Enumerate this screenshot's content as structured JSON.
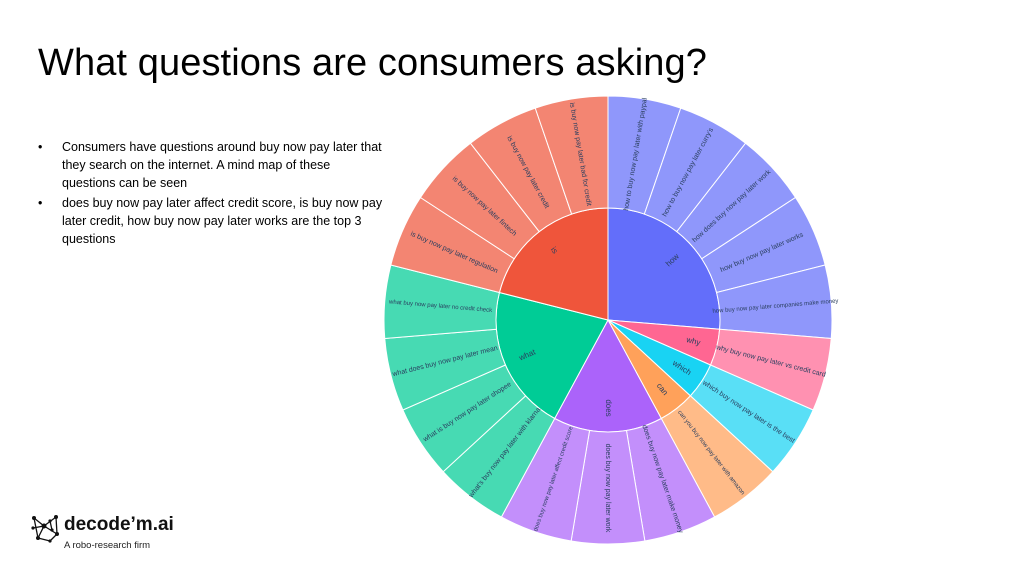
{
  "slide": {
    "title": "What questions are consumers asking?",
    "bullets": [
      "Consumers have questions around buy now pay later that they search on the internet. A mind map of these questions can be seen",
      "does buy now pay later affect credit score, is buy now pay later credit, how buy now pay later works are the top 3 questions"
    ],
    "bullet_symbol": "•"
  },
  "logo": {
    "name": "decode’m.ai",
    "tagline": "A robo-research firm",
    "icon": "network-brain-icon"
  },
  "chart_data": {
    "type": "sunburst",
    "title": "",
    "center": "",
    "groups": [
      {
        "name": "how",
        "color": "#636efa",
        "children": [
          {
            "name": "how to buy now pay later with paypal",
            "value": 1
          },
          {
            "name": "how to buy now pay later curry's",
            "value": 1
          },
          {
            "name": "how does buy now pay later work",
            "value": 1
          },
          {
            "name": "how buy now pay later works",
            "value": 1
          },
          {
            "name": "how buy now pay later companies make money",
            "value": 1
          }
        ]
      },
      {
        "name": "why",
        "color": "#ff6692",
        "children": [
          {
            "name": "why buy now pay later vs credit card",
            "value": 1
          }
        ]
      },
      {
        "name": "which",
        "color": "#19d3f3",
        "children": [
          {
            "name": "which buy now pay later is the best",
            "value": 1
          }
        ]
      },
      {
        "name": "can",
        "color": "#ffa15a",
        "children": [
          {
            "name": "can you buy now pay later with amazon",
            "value": 1
          }
        ]
      },
      {
        "name": "does",
        "color": "#ab63fa",
        "children": [
          {
            "name": "does buy now pay later make money",
            "value": 1
          },
          {
            "name": "does buy now pay later work",
            "value": 1
          },
          {
            "name": "does buy now pay later affect credit score",
            "value": 1
          }
        ]
      },
      {
        "name": "what",
        "color": "#00cc96",
        "children": [
          {
            "name": "what's buy now pay later with klarna",
            "value": 1
          },
          {
            "name": "what is buy now pay later shopee",
            "value": 1
          },
          {
            "name": "what does buy now pay later mean",
            "value": 1
          },
          {
            "name": "what buy now pay later no credit check",
            "value": 1
          }
        ]
      },
      {
        "name": "is",
        "color": "#ef553b",
        "children": [
          {
            "name": "is buy now pay later regulation",
            "value": 1
          },
          {
            "name": "is buy now pay later fintech",
            "value": 1
          },
          {
            "name": "is buy now pay later credit",
            "value": 1
          },
          {
            "name": "is buy now pay later bad for credit",
            "value": 1
          }
        ]
      }
    ]
  }
}
